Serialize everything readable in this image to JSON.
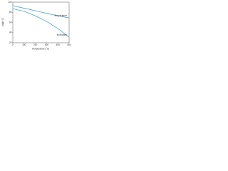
{
  "chart_data": {
    "type": "line",
    "x_label": "Temperature (°C)",
    "y_label": "Angle (°)",
    "x": [
      0,
      100,
      200,
      300,
      400,
      500
    ],
    "series": [
      {
        "name": "Temperature",
        "color": "#4aa3d8",
        "values": [
          93,
          88,
          83,
          78,
          73,
          69
        ]
      },
      {
        "name": "Inclination",
        "color": "#4aa3d8",
        "values": [
          87,
          82,
          73,
          62,
          48,
          31
        ]
      }
    ],
    "xlim": [
      0,
      500
    ],
    "xticks": [
      0,
      100,
      200,
      300,
      400,
      500
    ],
    "ylim": [
      20,
      100
    ],
    "yticks": [
      20,
      40,
      60,
      80,
      100
    ],
    "grid": false
  }
}
